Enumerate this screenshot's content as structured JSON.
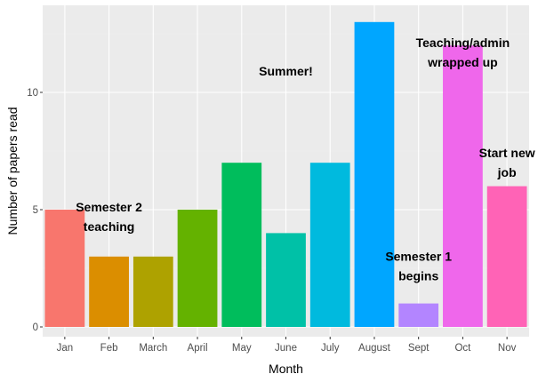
{
  "chart_data": {
    "type": "bar",
    "categories": [
      "Jan",
      "Feb",
      "March",
      "April",
      "May",
      "June",
      "July",
      "August",
      "Sept",
      "Oct",
      "Nov"
    ],
    "values": [
      5,
      3,
      3,
      5,
      7,
      4,
      7,
      13,
      1,
      12,
      6
    ],
    "colors": [
      "#F8766D",
      "#DB8E00",
      "#AEA200",
      "#64B200",
      "#00BD5C",
      "#00C1A7",
      "#00BADE",
      "#00A6FF",
      "#B385FF",
      "#EF67EB",
      "#FF63B6"
    ],
    "xlabel": "Month",
    "ylabel": "Number of papers read",
    "ylim": [
      0,
      13.7
    ],
    "yticks": [
      0,
      5,
      10
    ],
    "grid": true,
    "legend": "none",
    "annotations": [
      {
        "category": "Feb",
        "y": 4.7,
        "lines": [
          "Semester 2",
          "teaching"
        ]
      },
      {
        "category": "June",
        "y": 10.9,
        "lines": [
          "Summer!"
        ]
      },
      {
        "category": "Sept",
        "y": 2.6,
        "lines": [
          "Semester 1",
          "begins"
        ]
      },
      {
        "category": "Oct",
        "y": 11.7,
        "lines": [
          "Teaching/admin",
          "wrapped up"
        ]
      },
      {
        "category": "Nov",
        "y": 7.0,
        "lines": [
          "Start new",
          "job"
        ]
      }
    ]
  }
}
